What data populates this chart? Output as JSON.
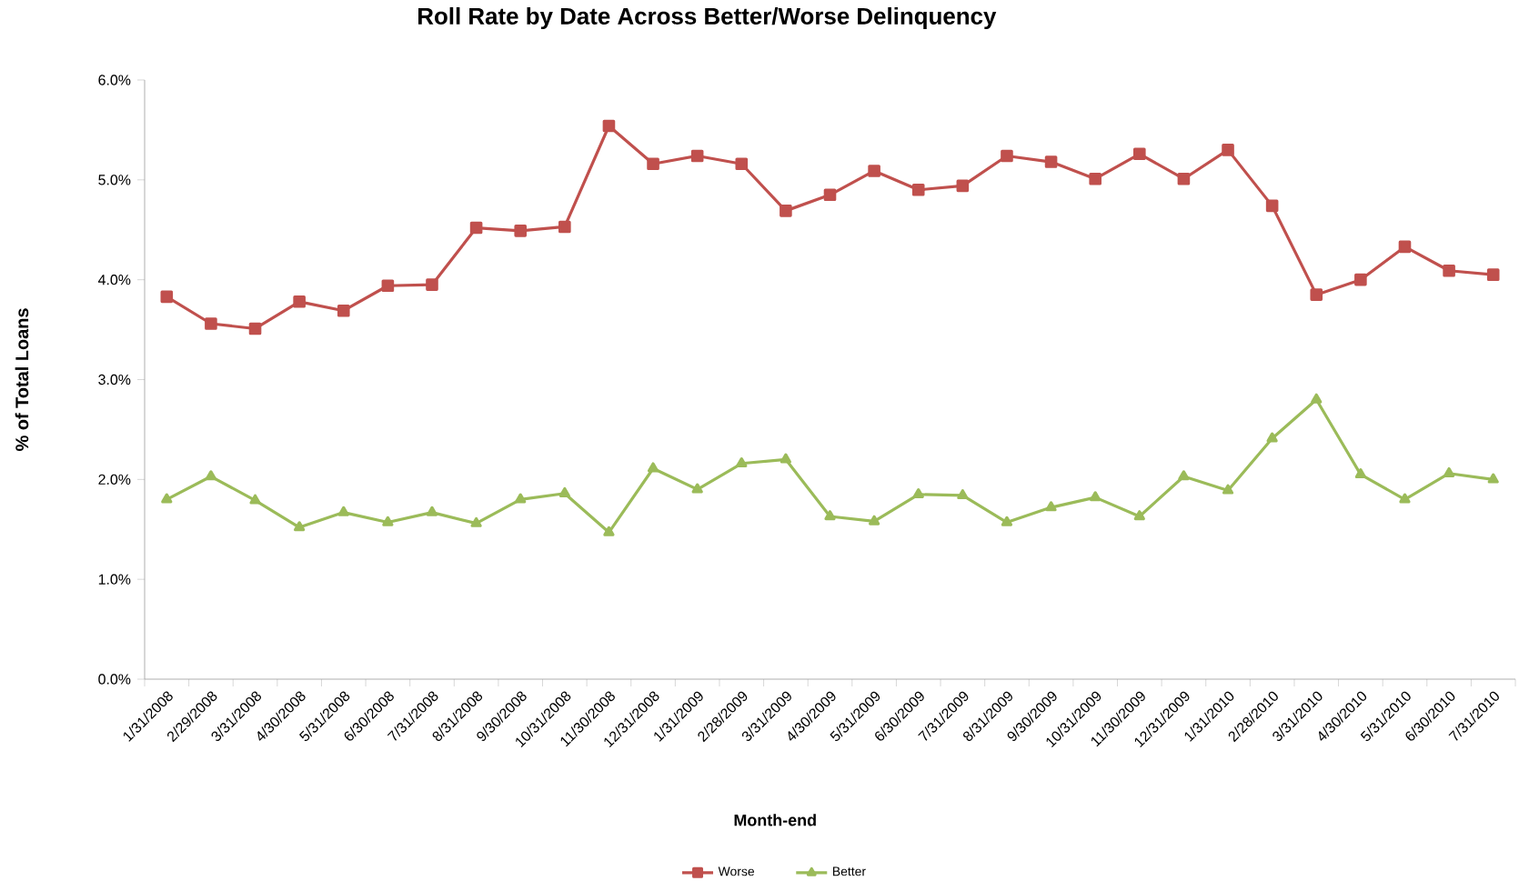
{
  "chart_data": {
    "type": "line",
    "title": "Roll Rate by Date Across Better/Worse Delinquency",
    "xlabel": "Month-end",
    "ylabel": "% of Total Loans",
    "categories": [
      "1/31/2008",
      "2/29/2008",
      "3/31/2008",
      "4/30/2008",
      "5/31/2008",
      "6/30/2008",
      "7/31/2008",
      "8/31/2008",
      "9/30/2008",
      "10/31/2008",
      "11/30/2008",
      "12/31/2008",
      "1/31/2009",
      "2/28/2009",
      "3/31/2009",
      "4/30/2009",
      "5/31/2009",
      "6/30/2009",
      "7/31/2009",
      "8/31/2009",
      "9/30/2009",
      "10/31/2009",
      "11/30/2009",
      "12/31/2009",
      "1/31/2010",
      "2/28/2010",
      "3/31/2010",
      "4/30/2010",
      "5/31/2010",
      "6/30/2010",
      "7/31/2010"
    ],
    "series": [
      {
        "name": "Worse",
        "color": "#c0504d",
        "marker": "square",
        "values": [
          3.83,
          3.56,
          3.51,
          3.78,
          3.69,
          3.94,
          3.95,
          4.52,
          4.49,
          4.53,
          5.54,
          5.16,
          5.24,
          5.16,
          4.69,
          4.85,
          5.09,
          4.9,
          4.94,
          5.24,
          5.18,
          5.01,
          5.26,
          5.01,
          5.3,
          4.74,
          3.85,
          4.0,
          4.33,
          4.09,
          4.05
        ]
      },
      {
        "name": "Better",
        "color": "#9bbb59",
        "marker": "triangle",
        "values": [
          1.8,
          2.03,
          1.79,
          1.52,
          1.67,
          1.57,
          1.67,
          1.56,
          1.8,
          1.86,
          1.47,
          2.11,
          1.9,
          2.16,
          2.2,
          1.63,
          1.58,
          1.85,
          1.84,
          1.57,
          1.72,
          1.82,
          1.63,
          2.03,
          1.89,
          2.41,
          2.8,
          2.05,
          1.8,
          2.06,
          2.0
        ]
      }
    ],
    "ylim": [
      0,
      6
    ],
    "yticks": [
      {
        "value": 0,
        "label": "0.0%"
      },
      {
        "value": 1,
        "label": "1.0%"
      },
      {
        "value": 2,
        "label": "2.0%"
      },
      {
        "value": 3,
        "label": "3.0%"
      },
      {
        "value": 4,
        "label": "4.0%"
      },
      {
        "value": 5,
        "label": "5.0%"
      },
      {
        "value": 6,
        "label": "6.0%"
      }
    ],
    "legend": "bottom"
  }
}
